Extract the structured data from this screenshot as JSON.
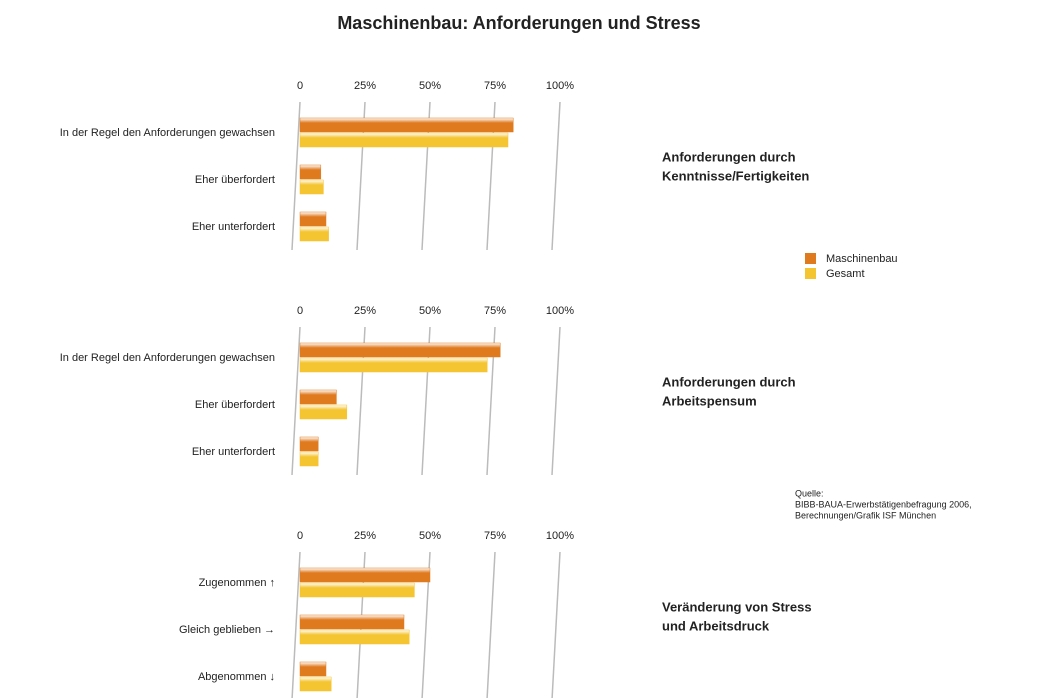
{
  "title": "Maschinenbau: Anforderungen und Stress",
  "source": [
    "Quelle:",
    "BIBB-BAUA-Erwerbstätigenbefragung 2006,",
    "Berechnungen/Grafik ISF München"
  ],
  "chart_data": [
    {
      "type": "bar",
      "title": [
        "Anforderungen durch",
        "Kenntnisse/Fertigkeiten"
      ],
      "categories": [
        "In der Regel den Anforderungen gewachsen",
        "Eher überfordert",
        "Eher unterfordert"
      ],
      "series": [
        {
          "name": "Maschinenbau",
          "color": "#e07a1f",
          "values": [
            82,
            8,
            10
          ]
        },
        {
          "name": "Gesamt",
          "color": "#f5c431",
          "values": [
            80,
            9,
            11
          ]
        }
      ],
      "xlim": [
        0,
        100
      ],
      "xticks": [
        0,
        {
          "value": 25,
          "label": "25%"
        },
        {
          "value": 50,
          "label": "50%"
        },
        {
          "value": 75,
          "label": "75%"
        },
        {
          "value": 100,
          "label": "100%"
        }
      ]
    },
    {
      "type": "bar",
      "title": [
        "Anforderungen durch",
        "Arbeitspensum"
      ],
      "categories": [
        "In der Regel den Anforderungen gewachsen",
        "Eher überfordert",
        "Eher unterfordert"
      ],
      "series": [
        {
          "color": "#e07a1f",
          "values": [
            77,
            14,
            7
          ]
        },
        {
          "color": "#f5c431",
          "values": [
            72,
            18,
            7
          ]
        }
      ],
      "xlim": [
        0,
        100
      ],
      "xticks": [
        0,
        {
          "value": 25,
          "label": "25%"
        },
        {
          "value": 50,
          "label": "50%"
        },
        {
          "value": 75,
          "label": "75%"
        },
        {
          "value": 100,
          "label": "100%"
        }
      ]
    },
    {
      "type": "bar",
      "title": [
        "Veränderung  von Stress",
        "und Arbeitsdruck"
      ],
      "categories": [
        "Zugenommen ↑",
        "Gleich geblieben →",
        "Abgenommen ↓"
      ],
      "series": [
        {
          "color": "#e07a1f",
          "values": [
            50,
            40,
            10
          ]
        },
        {
          "color": "#f5c431",
          "values": [
            44,
            42,
            12
          ]
        }
      ],
      "xlim": [
        0,
        100
      ],
      "xticks": [
        0,
        {
          "value": 25,
          "label": "25%"
        },
        {
          "value": 50,
          "label": "50%"
        },
        {
          "value": 75,
          "label": "75%"
        },
        {
          "value": 100,
          "label": "100%"
        }
      ]
    }
  ]
}
